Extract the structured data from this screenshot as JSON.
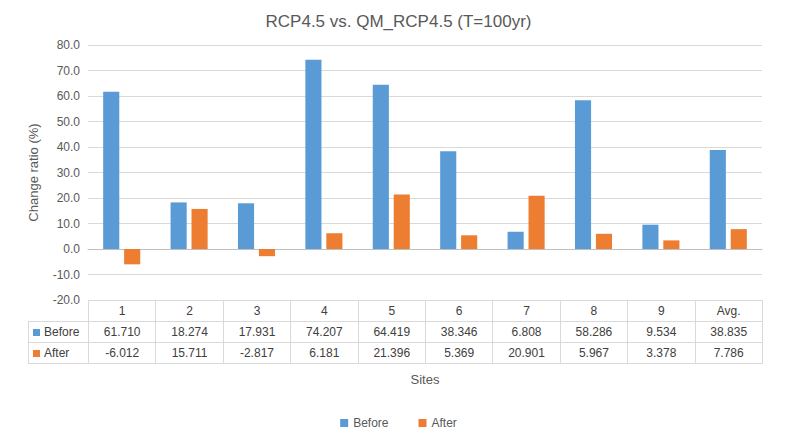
{
  "chart_data": {
    "type": "bar",
    "title": "RCP4.5 vs. QM_RCP4.5 (T=100yr)",
    "x_label": "Sites",
    "y_label": "Change ratio (%)",
    "categories": [
      "1",
      "2",
      "3",
      "4",
      "5",
      "6",
      "7",
      "8",
      "9",
      "Avg."
    ],
    "series": [
      {
        "name": "Before",
        "color": "#5b9bd5",
        "values": [
          61.71,
          18.274,
          17.931,
          74.207,
          64.419,
          38.346,
          6.808,
          58.286,
          9.534,
          38.835
        ],
        "value_labels": [
          "61.710",
          "18.274",
          "17.931",
          "74.207",
          "64.419",
          "38.346",
          "6.808",
          "58.286",
          "9.534",
          "38.835"
        ]
      },
      {
        "name": "After",
        "color": "#ed7d31",
        "values": [
          -6.012,
          15.711,
          -2.817,
          6.181,
          21.396,
          5.369,
          20.901,
          5.967,
          3.378,
          7.786
        ],
        "value_labels": [
          "-6.012",
          "15.711",
          "-2.817",
          "6.181",
          "21.396",
          "5.369",
          "20.901",
          "5.967",
          "3.378",
          "7.786"
        ]
      }
    ],
    "ylim": [
      -20,
      80
    ],
    "yticks": [
      {
        "value": -20,
        "label": "-20.0"
      },
      {
        "value": -10,
        "label": "-10.0"
      },
      {
        "value": 0,
        "label": "0.0"
      },
      {
        "value": 10,
        "label": "10.0"
      },
      {
        "value": 20,
        "label": "20.0"
      },
      {
        "value": 30,
        "label": "30.0"
      },
      {
        "value": 40,
        "label": "40.0"
      },
      {
        "value": 50,
        "label": "50.0"
      },
      {
        "value": 60,
        "label": "60.0"
      },
      {
        "value": 70,
        "label": "70.0"
      },
      {
        "value": 80,
        "label": "80.0"
      }
    ],
    "grid": true,
    "legend": "bottom"
  }
}
